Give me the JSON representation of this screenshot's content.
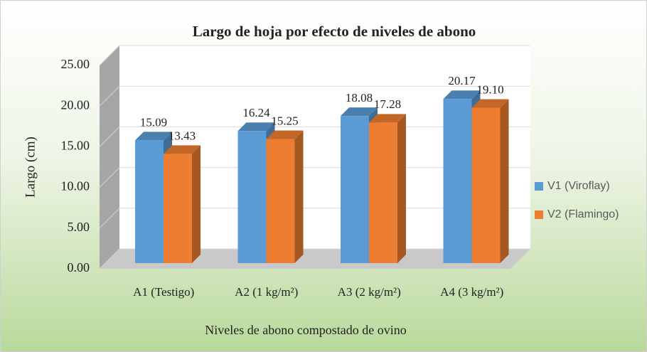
{
  "chart_data": {
    "type": "bar3d",
    "title": "Largo de hoja por efecto de niveles de abono",
    "ylabel": "Largo (cm)",
    "xlabel": "Niveles de abono compostado de ovino",
    "categories": [
      "A1 (Testigo)",
      "A2 (1 kg/m²)",
      "A3 (2 kg/m²)",
      "A4 (3 kg/m²)"
    ],
    "series": [
      {
        "name": "V1 (Viroflay)",
        "color": "#5b9bd5",
        "values": [
          15.09,
          16.24,
          18.08,
          20.17
        ],
        "value_labels": [
          "15.09",
          "16.24",
          "18.08",
          "20.17"
        ]
      },
      {
        "name": "V2 (Flamingo)",
        "color": "#ed7d31",
        "values": [
          13.43,
          15.25,
          17.28,
          19.1
        ],
        "value_labels": [
          "13.43",
          "15.25",
          "17.28",
          "19.10"
        ]
      }
    ],
    "ylim": [
      0,
      25
    ],
    "yticks": [
      {
        "value": 0,
        "label": "0.00"
      },
      {
        "value": 5,
        "label": "5.00"
      },
      {
        "value": 10,
        "label": "10.00"
      },
      {
        "value": 15,
        "label": "15.00"
      },
      {
        "value": 20,
        "label": "20.00"
      },
      {
        "value": 25,
        "label": "25.00"
      }
    ],
    "grid": true,
    "legend": "right"
  }
}
